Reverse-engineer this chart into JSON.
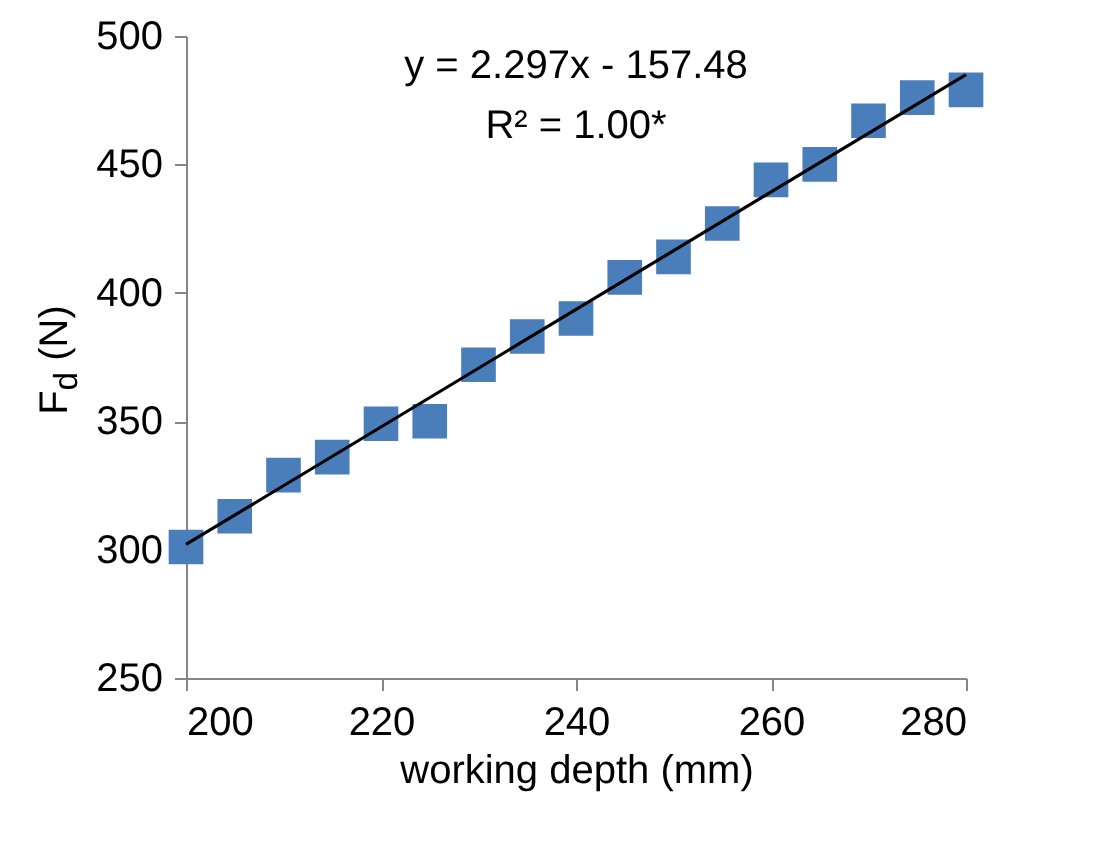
{
  "chart_data": {
    "type": "scatter",
    "xlabel": "working depth (mm)",
    "ylabel": "F$_{d}$ (N)",
    "x": [
      200,
      205,
      210,
      215,
      220,
      225,
      230,
      235,
      240,
      245,
      250,
      255,
      260,
      265,
      270,
      275,
      280
    ],
    "series": [
      {
        "color": "#4a7ebb",
        "marker": "square",
        "values": [
          301,
          313,
          329,
          336,
          349,
          350,
          372,
          383,
          390,
          406,
          414,
          427,
          444,
          450,
          467,
          476,
          479
        ]
      },
      {
        "type": "line",
        "color": "#000000",
        "marker": "none",
        "x": [
          200,
          280
        ],
        "values": [
          302,
          485
        ]
      }
    ],
    "annotations": [
      "y = 2.297x - 157.48",
      "R² = 1.00*"
    ],
    "xlim": [
      200,
      280
    ],
    "xticks": [
      200,
      220,
      240,
      260,
      280
    ],
    "ylim": [
      250,
      500
    ],
    "yticks": [
      250,
      300,
      350,
      400,
      450,
      500
    ],
    "grid": false
  }
}
